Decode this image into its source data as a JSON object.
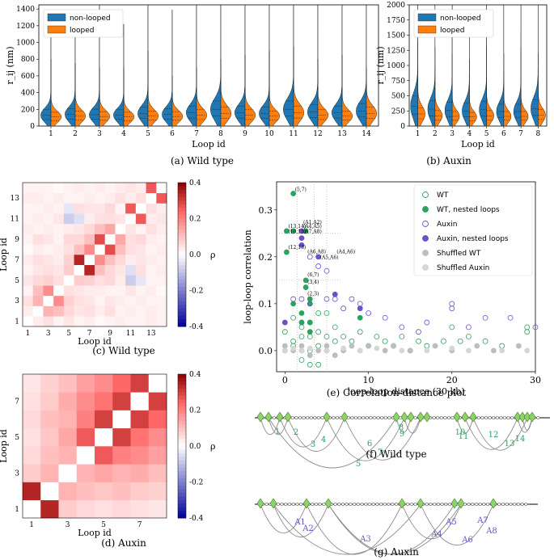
{
  "colors": {
    "nonlooped": "#1f77b4",
    "looped": "#ff7f0e",
    "wt": "#2ca25f",
    "auxin": "#6a51c9",
    "shuffled": "#bdbdbd",
    "node": "#8fd16a",
    "arc": "#8a8a8a"
  },
  "captions": {
    "a": "(a) Wild type",
    "b": "(b) Auxin",
    "c": "(c) Wild type",
    "d": "(d) Auxin",
    "e": "(e) Correlation-distance plot",
    "f": "(f) Wild type",
    "g": "(g) Auxin"
  },
  "labels": {
    "rij_nm": "r_ij (nm)",
    "loop_id": "Loop id",
    "rho": "ρ",
    "corr_y": "loop-loop correlation",
    "corr_x": "loop-loop distance (30 kb)"
  },
  "chart_data": [
    {
      "panel": "a",
      "type": "violin",
      "split": true,
      "categories": [
        "1",
        "2",
        "3",
        "4",
        "5",
        "6",
        "7",
        "8",
        "9",
        "10",
        "11",
        "12",
        "13",
        "14"
      ],
      "series": [
        {
          "name": "non-looped",
          "median": [
            130,
            140,
            135,
            130,
            150,
            140,
            160,
            200,
            160,
            150,
            200,
            170,
            160,
            180
          ],
          "max": [
            1320,
            1350,
            1450,
            1220,
            1450,
            1390,
            1450,
            1450,
            1450,
            1450,
            1450,
            1450,
            1450,
            1450
          ]
        },
        {
          "name": "looped",
          "median": [
            110,
            120,
            115,
            110,
            120,
            115,
            130,
            150,
            130,
            120,
            160,
            130,
            120,
            150
          ],
          "max": [
            800,
            750,
            700,
            700,
            900,
            600,
            700,
            800,
            850,
            900,
            950,
            800,
            850,
            700
          ]
        }
      ],
      "ylim": [
        0,
        1450
      ],
      "yticks": [
        0,
        200,
        400,
        600,
        800,
        1000,
        1200,
        1400
      ],
      "xlabel": "Loop id",
      "ylabel": "r_ij (nm)",
      "legend": [
        "non-looped",
        "looped"
      ]
    },
    {
      "panel": "b",
      "type": "violin",
      "split": true,
      "categories": [
        "1",
        "2",
        "3",
        "4",
        "5",
        "6",
        "7",
        "8"
      ],
      "series": [
        {
          "name": "non-looped",
          "median": [
            330,
            280,
            260,
            250,
            270,
            240,
            240,
            290
          ],
          "max": [
            2000,
            2000,
            2000,
            1900,
            2000,
            2000,
            2000,
            2000
          ]
        },
        {
          "name": "looped",
          "median": [
            200,
            170,
            160,
            150,
            170,
            160,
            160,
            180
          ],
          "max": [
            1400,
            1300,
            1200,
            1100,
            1300,
            1200,
            1300,
            1200
          ]
        }
      ],
      "ylim": [
        0,
        2000
      ],
      "yticks": [
        0,
        250,
        500,
        750,
        1000,
        1250,
        1500,
        1750,
        2000
      ],
      "xlabel": "Loop id",
      "ylabel": "r_ij (nm)",
      "legend": [
        "non-looped",
        "looped"
      ]
    },
    {
      "panel": "c",
      "type": "heatmap",
      "n": 14,
      "xticks": [
        "1",
        "3",
        "5",
        "7",
        "9",
        "11",
        "13"
      ],
      "yticks": [
        "1",
        "3",
        "5",
        "7",
        "9",
        "11",
        "13"
      ],
      "xlabel": "Loop id",
      "ylabel": "Loop id",
      "colorbar": {
        "label": "ρ",
        "ticks": [
          -0.4,
          -0.2,
          0.0,
          0.2,
          0.4
        ],
        "range": [
          -0.4,
          0.4
        ]
      },
      "values": [
        [
          0,
          0.03,
          0.05,
          0.02,
          0.04,
          0.02,
          0.03,
          0.01,
          0.02,
          0.03,
          0.02,
          0.02,
          0.03,
          0.02
        ],
        [
          0.03,
          0,
          0.12,
          0.1,
          0.06,
          0.04,
          0.05,
          0.03,
          0.05,
          0.02,
          0.03,
          0.02,
          0.03,
          0.02
        ],
        [
          0.05,
          0.12,
          0,
          0.18,
          0.07,
          0.05,
          0.04,
          0.02,
          0.04,
          0.03,
          0.02,
          0.03,
          0.02,
          0.02
        ],
        [
          0.02,
          0.1,
          0.18,
          0,
          0.05,
          0.04,
          0.03,
          0.03,
          0.02,
          0.02,
          0.04,
          0.02,
          0.03,
          0.01
        ],
        [
          0.04,
          0.06,
          0.07,
          0.05,
          0,
          0.08,
          0.07,
          0.05,
          0.06,
          0.03,
          -0.08,
          -0.04,
          0.02,
          0.02
        ],
        [
          0.02,
          0.04,
          0.05,
          0.04,
          0.08,
          0,
          0.34,
          0.1,
          0.06,
          0.04,
          -0.05,
          0.05,
          0.02,
          0.03
        ],
        [
          0.03,
          0.05,
          0.04,
          0.03,
          0.07,
          0.34,
          0,
          0.18,
          0.1,
          0.06,
          0.03,
          0.04,
          0.03,
          0.02
        ],
        [
          0.01,
          0.03,
          0.02,
          0.03,
          0.05,
          0.1,
          0.18,
          0,
          0.28,
          0.1,
          0.05,
          0.04,
          0.02,
          0.03
        ],
        [
          0.02,
          0.05,
          0.04,
          0.02,
          0.06,
          0.06,
          0.1,
          0.28,
          0,
          0.14,
          0.05,
          0.06,
          0.03,
          0.02
        ],
        [
          0.03,
          0.02,
          0.03,
          0.02,
          0.03,
          0.04,
          0.06,
          0.1,
          0.14,
          0,
          0.04,
          0.02,
          0.05,
          0.03
        ],
        [
          0.02,
          0.03,
          0.02,
          0.04,
          -0.08,
          -0.05,
          0.03,
          0.05,
          0.05,
          0.04,
          0,
          0.26,
          0.03,
          0.04
        ],
        [
          0.02,
          0.02,
          0.03,
          0.02,
          -0.04,
          0.05,
          0.04,
          0.04,
          0.06,
          0.02,
          0.26,
          0,
          0.05,
          0.03
        ],
        [
          0.03,
          0.03,
          0.02,
          0.03,
          0.02,
          0.02,
          0.03,
          0.02,
          0.03,
          0.05,
          0.03,
          0.05,
          0,
          0.26
        ],
        [
          0.02,
          0.02,
          0.02,
          0.01,
          0.02,
          0.03,
          0.02,
          0.03,
          0.02,
          0.03,
          0.04,
          0.03,
          0.26,
          0
        ]
      ]
    },
    {
      "panel": "d",
      "type": "heatmap",
      "n": 8,
      "xticks": [
        "1",
        "3",
        "5",
        "7"
      ],
      "yticks": [
        "1",
        "3",
        "5",
        "7"
      ],
      "xlabel": "Loop id",
      "ylabel": "Loop id",
      "colorbar": {
        "label": "ρ",
        "ticks": [
          -0.4,
          -0.2,
          0.0,
          0.2,
          0.4
        ],
        "range": [
          -0.4,
          0.4
        ]
      },
      "values": [
        [
          0,
          0.34,
          0.08,
          0.06,
          0.05,
          0.06,
          0.05,
          0.04
        ],
        [
          0.34,
          0,
          0.12,
          0.1,
          0.09,
          0.1,
          0.08,
          0.07
        ],
        [
          0.08,
          0.12,
          0,
          0.12,
          0.14,
          0.12,
          0.13,
          0.1
        ],
        [
          0.06,
          0.1,
          0.12,
          0,
          0.26,
          0.2,
          0.18,
          0.15
        ],
        [
          0.05,
          0.09,
          0.14,
          0.26,
          0,
          0.3,
          0.22,
          0.18
        ],
        [
          0.06,
          0.1,
          0.12,
          0.2,
          0.3,
          0,
          0.3,
          0.24
        ],
        [
          0.05,
          0.08,
          0.13,
          0.18,
          0.22,
          0.3,
          0,
          0.3
        ],
        [
          0.04,
          0.07,
          0.1,
          0.15,
          0.18,
          0.24,
          0.3,
          0
        ]
      ]
    },
    {
      "panel": "e",
      "type": "scatter",
      "xlim": [
        -1,
        30
      ],
      "ylim": [
        -0.045,
        0.36
      ],
      "xticks": [
        0,
        10,
        20,
        30
      ],
      "yticks": [
        0.0,
        0.1,
        0.2,
        0.3
      ],
      "xlabel": "loop-loop distance (30 kb)",
      "ylabel": "loop-loop correlation",
      "legend": [
        "WT",
        "WT, nested loops",
        "Auxin",
        "Auxin, nested loops",
        "Shuffled WT",
        "Shuffled Auxin"
      ],
      "series": [
        {
          "name": "WT",
          "points": [
            [
              0,
              0.04
            ],
            [
              1,
              0.02
            ],
            [
              1,
              0.01
            ],
            [
              2,
              0.05
            ],
            [
              2,
              0.03
            ],
            [
              2,
              0.0
            ],
            [
              2,
              -0.02
            ],
            [
              3,
              0.06
            ],
            [
              3,
              0.03
            ],
            [
              3,
              0.0
            ],
            [
              3,
              -0.03
            ],
            [
              4,
              0.04
            ],
            [
              4,
              0.01
            ],
            [
              4,
              -0.03
            ],
            [
              5,
              0.03
            ],
            [
              5,
              0.0
            ],
            [
              6,
              0.05
            ],
            [
              6,
              0.02
            ],
            [
              7,
              0.03
            ],
            [
              8,
              0.02
            ],
            [
              9,
              0.04
            ],
            [
              10,
              0.01
            ],
            [
              11,
              0.03
            ],
            [
              12,
              0.02
            ],
            [
              13,
              0.01
            ],
            [
              14,
              0.03
            ],
            [
              15,
              0.0
            ],
            [
              16,
              0.02
            ],
            [
              17,
              0.01
            ],
            [
              19,
              0.02
            ],
            [
              20,
              0.05
            ],
            [
              21,
              0.02
            ],
            [
              22,
              0.03
            ],
            [
              24,
              0.02
            ],
            [
              26,
              0.01
            ],
            [
              29,
              0.05
            ],
            [
              29,
              0.04
            ],
            [
              1,
              0.07
            ],
            [
              4,
              0.08
            ],
            [
              2,
              0.06
            ],
            [
              5,
              0.08
            ]
          ]
        },
        {
          "name": "WT, nested loops",
          "points": [
            [
              1,
              0.335
            ],
            [
              0.2,
              0.255
            ],
            [
              1,
              0.255
            ],
            [
              2.5,
              0.255
            ],
            [
              0.2,
              0.21
            ],
            [
              2.5,
              0.15
            ],
            [
              2.5,
              0.135
            ],
            [
              3,
              0.11
            ],
            [
              1,
              0.1
            ],
            [
              2,
              0.08
            ],
            [
              2,
              0.06
            ],
            [
              3,
              0.06
            ],
            [
              3,
              0.04
            ],
            [
              9,
              0.07
            ],
            [
              3,
              0.1
            ]
          ]
        },
        {
          "name": "Auxin",
          "points": [
            [
              1,
              0.11
            ],
            [
              2,
              0.11
            ],
            [
              3,
              0.1
            ],
            [
              5,
              0.11
            ],
            [
              6,
              0.11
            ],
            [
              7,
              0.09
            ],
            [
              8,
              0.11
            ],
            [
              9,
              0.1
            ],
            [
              10,
              0.08
            ],
            [
              12,
              0.07
            ],
            [
              14,
              0.05
            ],
            [
              16,
              0.04
            ],
            [
              17,
              0.06
            ],
            [
              20,
              0.1
            ],
            [
              20,
              0.09
            ],
            [
              22,
              0.05
            ],
            [
              24,
              0.07
            ],
            [
              27,
              0.07
            ],
            [
              30,
              0.05
            ],
            [
              4,
              0.18
            ],
            [
              5,
              0.17
            ],
            [
              3,
              0.2
            ]
          ]
        },
        {
          "name": "Auxin, nested loops",
          "points": [
            [
              0,
              0.0
            ],
            [
              2,
              0.255
            ],
            [
              2,
              0.24
            ],
            [
              2,
              0.225
            ],
            [
              4,
              0.2
            ],
            [
              6,
              0.12
            ],
            [
              9,
              0.09
            ],
            [
              0,
              0.06
            ]
          ]
        },
        {
          "name": "Shuffled WT",
          "points": [
            [
              0,
              0.01
            ],
            [
              1,
              0.0
            ],
            [
              2,
              0.01
            ],
            [
              3,
              -0.01
            ],
            [
              4,
              0.0
            ],
            [
              5,
              0.01
            ],
            [
              6,
              -0.01
            ],
            [
              7,
              0.0
            ],
            [
              8,
              0.01
            ],
            [
              9,
              0.0
            ],
            [
              10,
              0.01
            ],
            [
              12,
              0.0
            ],
            [
              13,
              0.01
            ],
            [
              15,
              0.0
            ],
            [
              18,
              0.01
            ],
            [
              20,
              0.0
            ],
            [
              23,
              0.01
            ],
            [
              25,
              0.0
            ],
            [
              28,
              0.01
            ]
          ]
        },
        {
          "name": "Shuffled Auxin",
          "points": [
            [
              0,
              0.0
            ],
            [
              1,
              0.005
            ],
            [
              2,
              0.0
            ],
            [
              3,
              0.005
            ],
            [
              5,
              0.0
            ],
            [
              7,
              0.005
            ],
            [
              9,
              0.0
            ],
            [
              11,
              0.005
            ],
            [
              14,
              0.0
            ],
            [
              17,
              0.0
            ],
            [
              20,
              0.005
            ],
            [
              22,
              0.0
            ],
            [
              26,
              0.0
            ],
            [
              29,
              0.0
            ]
          ]
        }
      ],
      "annotations": [
        {
          "text": "(5,7)",
          "x": 1,
          "y": 0.335
        },
        {
          "text": "(A1,A2)",
          "x": 2,
          "y": 0.265
        },
        {
          "text": "(A4,A5)",
          "x": 2,
          "y": 0.257
        },
        {
          "text": "(13,14)",
          "x": 0.2,
          "y": 0.257
        },
        {
          "text": "(A7,A8)",
          "x": 2,
          "y": 0.245
        },
        {
          "text": "(10,11)",
          "x": 0.2,
          "y": 0.245
        },
        {
          "text": "(12,13)",
          "x": 0.2,
          "y": 0.212
        },
        {
          "text": "(A6,A8)",
          "x": 2.5,
          "y": 0.202
        },
        {
          "text": "(A4,A6)",
          "x": 6,
          "y": 0.202
        },
        {
          "text": "(A5,A6)",
          "x": 4,
          "y": 0.19
        },
        {
          "text": "(6,7)",
          "x": 2.5,
          "y": 0.153
        },
        {
          "text": "(3,4)",
          "x": 2.5,
          "y": 0.138
        },
        {
          "text": "(2,3)",
          "x": 2.5,
          "y": 0.113
        }
      ]
    },
    {
      "panel": "f",
      "type": "arc-diagram",
      "labels": [
        "1",
        "2",
        "3",
        "4",
        "5",
        "6",
        "7",
        "8",
        "9",
        "10",
        "11",
        "12",
        "13",
        "14"
      ]
    },
    {
      "panel": "g",
      "type": "arc-diagram",
      "labels": [
        "A1",
        "A2",
        "A3",
        "A4",
        "A5",
        "A6",
        "A7",
        "A8"
      ]
    }
  ]
}
